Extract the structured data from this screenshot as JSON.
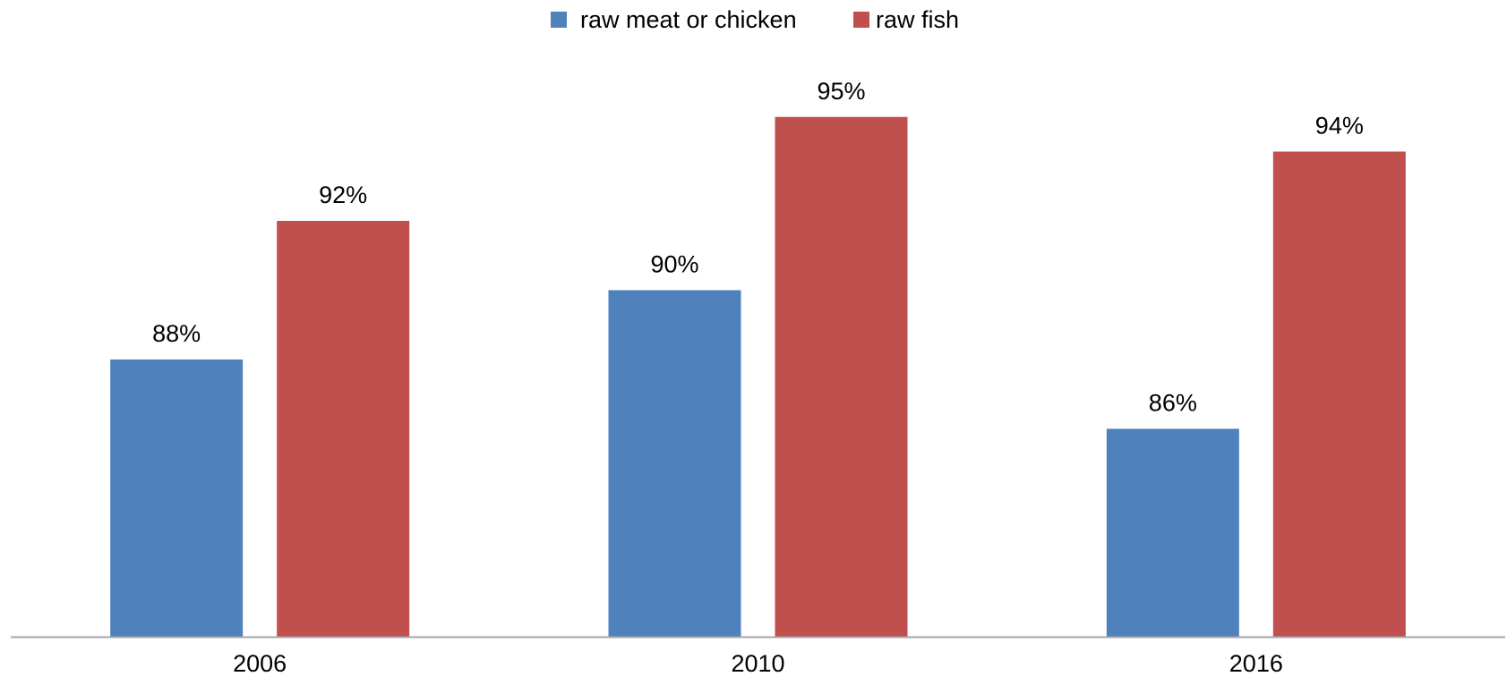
{
  "chart_data": {
    "type": "bar",
    "categories": [
      "2006",
      "2010",
      "2016"
    ],
    "series": [
      {
        "name": "raw meat or chicken",
        "values": [
          88,
          90,
          86
        ],
        "labels": [
          "88%",
          "90%",
          "86%"
        ],
        "color": "#4F81BD"
      },
      {
        "name": "raw fish",
        "values": [
          92,
          95,
          94
        ],
        "labels": [
          "92%",
          "95%",
          "94%"
        ],
        "color": "#C0504D"
      }
    ],
    "title": "",
    "xlabel": "",
    "ylabel": "",
    "ylim": [
      80,
      96
    ],
    "grid": false,
    "legend": "top-center",
    "axis_color": "#A6A6A6"
  }
}
